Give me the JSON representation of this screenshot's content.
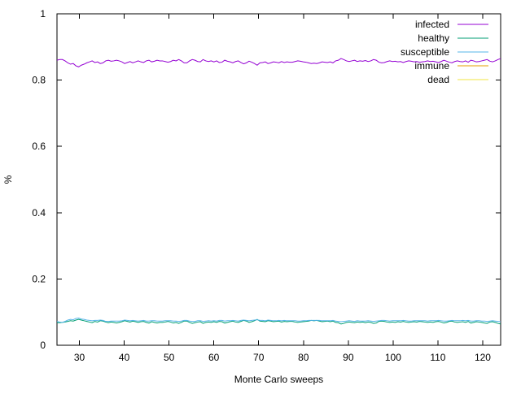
{
  "chart_data": {
    "type": "line",
    "title": "",
    "xlabel": "Monte Carlo sweeps",
    "ylabel": "%",
    "xlim": [
      25,
      124
    ],
    "ylim": [
      0,
      1
    ],
    "xticks": [
      30,
      40,
      50,
      60,
      70,
      80,
      90,
      100,
      110,
      120
    ],
    "yticks": [
      0,
      0.2,
      0.4,
      0.6,
      0.8,
      1
    ],
    "ytick_labels": [
      "0",
      "0.2",
      "0.4",
      "0.6",
      "0.8",
      "1"
    ],
    "grid": false,
    "legend_position": "top-right",
    "x_start": 25,
    "x_step": 1,
    "series": [
      {
        "name": "infected",
        "color": "#9400d3",
        "values": [
          0.86,
          0.862,
          0.862,
          0.858,
          0.852,
          0.848,
          0.85,
          0.843,
          0.84,
          0.845,
          0.848,
          0.852,
          0.855,
          0.858,
          0.853,
          0.855,
          0.85,
          0.852,
          0.858,
          0.86,
          0.857,
          0.858,
          0.86,
          0.858,
          0.855,
          0.85,
          0.853,
          0.856,
          0.852,
          0.855,
          0.858,
          0.855,
          0.853,
          0.858,
          0.86,
          0.855,
          0.857,
          0.86,
          0.858,
          0.858,
          0.856,
          0.854,
          0.856,
          0.86,
          0.858,
          0.862,
          0.858,
          0.852,
          0.852,
          0.858,
          0.862,
          0.86,
          0.856,
          0.855,
          0.862,
          0.858,
          0.856,
          0.858,
          0.855,
          0.858,
          0.853,
          0.854,
          0.86,
          0.857,
          0.855,
          0.852,
          0.856,
          0.858,
          0.853,
          0.849,
          0.852,
          0.857,
          0.854,
          0.85,
          0.845,
          0.852,
          0.853,
          0.855,
          0.85,
          0.852,
          0.855,
          0.854,
          0.852,
          0.856,
          0.853,
          0.855,
          0.854,
          0.854,
          0.856,
          0.858,
          0.857,
          0.855,
          0.854,
          0.852,
          0.85,
          0.851,
          0.85,
          0.852,
          0.855,
          0.854,
          0.853,
          0.855,
          0.852,
          0.858,
          0.86,
          0.865,
          0.862,
          0.858,
          0.856,
          0.858,
          0.86,
          0.856,
          0.858,
          0.857,
          0.859,
          0.856,
          0.858,
          0.862,
          0.86,
          0.854,
          0.852,
          0.853,
          0.856,
          0.858,
          0.856,
          0.857,
          0.855,
          0.856,
          0.853,
          0.856,
          0.858,
          0.857,
          0.855,
          0.856,
          0.854,
          0.855,
          0.856,
          0.858,
          0.856,
          0.857,
          0.855,
          0.853,
          0.856,
          0.86,
          0.857,
          0.854,
          0.852,
          0.856,
          0.858,
          0.856,
          0.855,
          0.858,
          0.854,
          0.86,
          0.858,
          0.855,
          0.856,
          0.858,
          0.86,
          0.862,
          0.857,
          0.855,
          0.858,
          0.862,
          0.865
        ]
      },
      {
        "name": "healthy",
        "color": "#009e73",
        "values": [
          0.068,
          0.068,
          0.069,
          0.07,
          0.072,
          0.074,
          0.073,
          0.076,
          0.078,
          0.076,
          0.074,
          0.072,
          0.07,
          0.068,
          0.072,
          0.07,
          0.074,
          0.073,
          0.07,
          0.068,
          0.07,
          0.069,
          0.067,
          0.069,
          0.071,
          0.074,
          0.072,
          0.07,
          0.073,
          0.071,
          0.069,
          0.071,
          0.072,
          0.069,
          0.067,
          0.071,
          0.069,
          0.067,
          0.069,
          0.069,
          0.07,
          0.072,
          0.07,
          0.067,
          0.069,
          0.066,
          0.069,
          0.073,
          0.073,
          0.069,
          0.066,
          0.068,
          0.07,
          0.071,
          0.066,
          0.069,
          0.07,
          0.069,
          0.071,
          0.069,
          0.072,
          0.071,
          0.067,
          0.069,
          0.071,
          0.073,
          0.07,
          0.069,
          0.072,
          0.075,
          0.073,
          0.069,
          0.071,
          0.074,
          0.078,
          0.073,
          0.072,
          0.071,
          0.074,
          0.073,
          0.071,
          0.072,
          0.073,
          0.07,
          0.072,
          0.071,
          0.072,
          0.072,
          0.07,
          0.069,
          0.07,
          0.071,
          0.072,
          0.073,
          0.075,
          0.074,
          0.075,
          0.073,
          0.071,
          0.072,
          0.073,
          0.071,
          0.073,
          0.069,
          0.068,
          0.064,
          0.066,
          0.069,
          0.07,
          0.069,
          0.068,
          0.07,
          0.069,
          0.07,
          0.068,
          0.07,
          0.069,
          0.066,
          0.067,
          0.072,
          0.073,
          0.072,
          0.07,
          0.069,
          0.07,
          0.069,
          0.071,
          0.07,
          0.072,
          0.07,
          0.069,
          0.07,
          0.071,
          0.07,
          0.072,
          0.071,
          0.07,
          0.069,
          0.07,
          0.069,
          0.071,
          0.072,
          0.07,
          0.067,
          0.069,
          0.072,
          0.073,
          0.07,
          0.069,
          0.07,
          0.071,
          0.069,
          0.072,
          0.067,
          0.069,
          0.071,
          0.07,
          0.069,
          0.067,
          0.066,
          0.07,
          0.071,
          0.069,
          0.066,
          0.064
        ]
      },
      {
        "name": "susceptible",
        "color": "#56b4e9",
        "values": [
          0.072,
          0.07,
          0.069,
          0.072,
          0.076,
          0.078,
          0.077,
          0.081,
          0.082,
          0.079,
          0.078,
          0.076,
          0.075,
          0.074,
          0.075,
          0.075,
          0.076,
          0.075,
          0.072,
          0.072,
          0.073,
          0.073,
          0.073,
          0.073,
          0.074,
          0.076,
          0.075,
          0.074,
          0.075,
          0.074,
          0.073,
          0.074,
          0.075,
          0.073,
          0.073,
          0.074,
          0.074,
          0.073,
          0.073,
          0.073,
          0.074,
          0.074,
          0.074,
          0.073,
          0.073,
          0.072,
          0.073,
          0.075,
          0.075,
          0.073,
          0.072,
          0.072,
          0.074,
          0.074,
          0.072,
          0.073,
          0.074,
          0.073,
          0.074,
          0.073,
          0.075,
          0.075,
          0.073,
          0.074,
          0.074,
          0.075,
          0.074,
          0.073,
          0.075,
          0.076,
          0.075,
          0.074,
          0.075,
          0.076,
          0.077,
          0.075,
          0.075,
          0.074,
          0.076,
          0.075,
          0.074,
          0.074,
          0.075,
          0.074,
          0.075,
          0.074,
          0.074,
          0.074,
          0.074,
          0.073,
          0.073,
          0.074,
          0.074,
          0.075,
          0.075,
          0.075,
          0.075,
          0.075,
          0.074,
          0.074,
          0.074,
          0.074,
          0.075,
          0.073,
          0.072,
          0.071,
          0.072,
          0.073,
          0.074,
          0.073,
          0.072,
          0.074,
          0.073,
          0.073,
          0.073,
          0.074,
          0.073,
          0.072,
          0.073,
          0.074,
          0.075,
          0.075,
          0.074,
          0.073,
          0.074,
          0.074,
          0.074,
          0.074,
          0.075,
          0.074,
          0.073,
          0.073,
          0.074,
          0.074,
          0.074,
          0.074,
          0.074,
          0.073,
          0.074,
          0.074,
          0.074,
          0.075,
          0.074,
          0.073,
          0.073,
          0.074,
          0.075,
          0.074,
          0.074,
          0.074,
          0.075,
          0.074,
          0.075,
          0.073,
          0.073,
          0.074,
          0.074,
          0.073,
          0.073,
          0.072,
          0.073,
          0.074,
          0.073,
          0.072,
          0.071
        ]
      },
      {
        "name": "immune",
        "color": "#e69f00",
        "values": [
          0,
          0
        ]
      },
      {
        "name": "dead",
        "color": "#f0e442",
        "values": [
          0,
          0
        ]
      }
    ]
  }
}
